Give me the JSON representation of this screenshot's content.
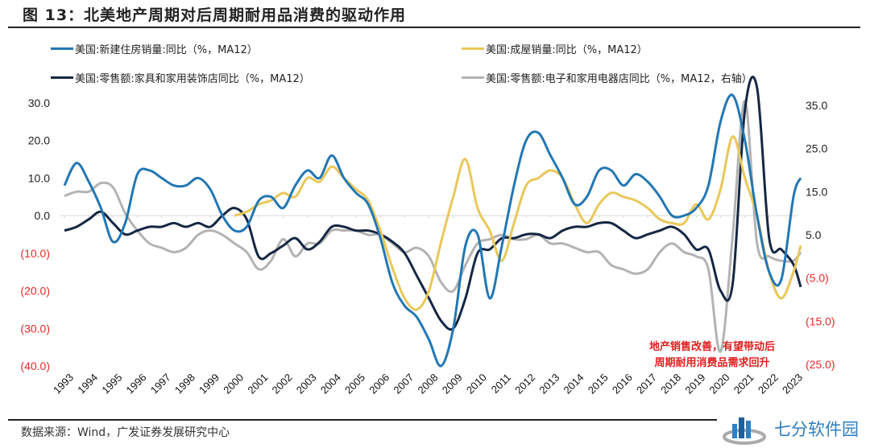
{
  "figure": {
    "title": "图 13：北美地产周期对后周期耐用品消费的驱动作用",
    "source": "数据来源：Wind，广发证券发展研究中心",
    "annotation_line1": "地产销售改善，有望带动后",
    "annotation_line2": "周期耐用消费品需求回升",
    "watermark": "七分软件园"
  },
  "chart_data": {
    "type": "line",
    "title": "图 13：北美地产周期对后周期耐用品消费的驱动作用",
    "xlabel": "",
    "ylabel": "",
    "x_ticks": [
      "1993",
      "1994",
      "1995",
      "1996",
      "1997",
      "1998",
      "1999",
      "2000",
      "2001",
      "2002",
      "2003",
      "2004",
      "2005",
      "2006",
      "2007",
      "2008",
      "2009",
      "2010",
      "2011",
      "2012",
      "2013",
      "2014",
      "2015",
      "2016",
      "2017",
      "2018",
      "2019",
      "2020",
      "2021",
      "2022",
      "2023"
    ],
    "xlim": [
      1993,
      2024
    ],
    "left_axis": {
      "ylim": [
        -40,
        30
      ],
      "ticks": [
        30,
        20,
        10,
        0,
        -10,
        -20,
        -30,
        -40
      ],
      "tick_labels": [
        "30.0",
        "20.0",
        "10.0",
        "0.0",
        "(10.0)",
        "(20.0)",
        "(30.0)",
        "(40.0)"
      ]
    },
    "right_axis": {
      "ylim": [
        -25,
        35
      ],
      "ticks": [
        35,
        25,
        15,
        5,
        -5,
        -15,
        -25
      ],
      "tick_labels": [
        "35.0",
        "25.0",
        "15.0",
        "5.0",
        "(5.0)",
        "(15.0)",
        "(25.0)"
      ]
    },
    "negative_label_color": "#e8282a",
    "positive_label_color": "#222222",
    "grid": false,
    "zero_line": true,
    "legend_position": "top",
    "series": [
      {
        "name": "美国:新建住房销量:同比（%，MA12）",
        "color": "#2277b4",
        "axis": "left",
        "x": [
          1993,
          1993.5,
          1994,
          1994.5,
          1995,
          1995.5,
          1996,
          1996.5,
          1997,
          1997.5,
          1998,
          1998.5,
          1999,
          1999.5,
          2000,
          2000.5,
          2001,
          2001.5,
          2002,
          2002.5,
          2003,
          2003.5,
          2004,
          2004.5,
          2005,
          2005.5,
          2006,
          2006.5,
          2007,
          2007.5,
          2008,
          2008.5,
          2009,
          2009.5,
          2010,
          2010.5,
          2011,
          2011.5,
          2012,
          2012.5,
          2013,
          2013.5,
          2014,
          2014.5,
          2015,
          2015.5,
          2016,
          2016.5,
          2017,
          2017.5,
          2018,
          2018.5,
          2019,
          2019.5,
          2020,
          2020.5,
          2021,
          2021.5,
          2022,
          2022.5,
          2023,
          2023.3
        ],
        "values": [
          8,
          14,
          9,
          2,
          -7,
          -2,
          11,
          12,
          10,
          8,
          8,
          10,
          7,
          0,
          -4,
          -3,
          4,
          5,
          2,
          8,
          12,
          10,
          16,
          10,
          6,
          3,
          -6,
          -18,
          -24,
          -27,
          -33,
          -40,
          -30,
          -8,
          -5,
          -22,
          -8,
          8,
          20,
          22,
          16,
          10,
          3,
          5,
          12,
          12,
          8,
          11,
          9,
          5,
          0,
          0,
          2,
          8,
          25,
          32,
          20,
          0,
          -15,
          -17,
          5,
          10
        ]
      },
      {
        "name": "美国:成屋销量:同比（%，MA12）",
        "color": "#e9c75a",
        "axis": "left",
        "x": [
          2000,
          2000.5,
          2001,
          2001.5,
          2002,
          2002.5,
          2003,
          2003.5,
          2004,
          2004.5,
          2005,
          2005.5,
          2006,
          2006.5,
          2007,
          2007.5,
          2008,
          2008.5,
          2009,
          2009.5,
          2010,
          2010.5,
          2011,
          2011.5,
          2012,
          2012.5,
          2013,
          2013.5,
          2014,
          2014.5,
          2015,
          2015.5,
          2016,
          2016.5,
          2017,
          2017.5,
          2018,
          2018.5,
          2019,
          2019.5,
          2020,
          2020.5,
          2021,
          2021.5,
          2022,
          2022.5,
          2023,
          2023.3
        ],
        "values": [
          0,
          1,
          3,
          4,
          6,
          5,
          10,
          9,
          13,
          10,
          7,
          4,
          -4,
          -14,
          -22,
          -25,
          -20,
          -7,
          5,
          15,
          2,
          -4,
          -12,
          -2,
          8,
          10,
          12,
          10,
          3,
          -2,
          3,
          6,
          5,
          4,
          2,
          -1,
          -2,
          -2,
          3,
          -1,
          7,
          21,
          10,
          0,
          -15,
          -22,
          -15,
          -8
        ]
      },
      {
        "name": "美国:零售额:家具和家用装饰店同比（%，MA12）",
        "color": "#152742",
        "axis": "left",
        "x": [
          1993,
          1993.5,
          1994,
          1994.5,
          1995,
          1995.5,
          1996,
          1996.5,
          1997,
          1997.5,
          1998,
          1998.5,
          1999,
          1999.5,
          2000,
          2000.5,
          2001,
          2001.5,
          2002,
          2002.5,
          2003,
          2003.5,
          2004,
          2004.5,
          2005,
          2005.5,
          2006,
          2006.5,
          2007,
          2007.5,
          2008,
          2008.5,
          2009,
          2009.5,
          2010,
          2010.5,
          2011,
          2011.5,
          2012,
          2012.5,
          2013,
          2013.5,
          2014,
          2014.5,
          2015,
          2015.5,
          2016,
          2016.5,
          2017,
          2017.5,
          2018,
          2018.5,
          2019,
          2019.5,
          2020,
          2020.5,
          2021,
          2021.5,
          2022,
          2022.5,
          2023,
          2023.3
        ],
        "values": [
          -4,
          -3,
          -1,
          1,
          -2,
          -5,
          -4,
          -3,
          -3,
          -2,
          -3,
          -2,
          -3,
          0,
          2,
          -1,
          -11,
          -10,
          -8,
          -6,
          -9,
          -7,
          -3,
          -3,
          -4,
          -4,
          -5,
          -7,
          -10,
          -16,
          -22,
          -28,
          -30,
          -22,
          -10,
          -9,
          -6,
          -6,
          -5,
          -5,
          -6,
          -4,
          -3,
          -3,
          -2,
          -2,
          -4,
          -6,
          -5,
          -4,
          -3,
          -5,
          -9,
          -9,
          -20,
          -18,
          28,
          34,
          -6,
          -9,
          -13,
          -19
        ]
      },
      {
        "name": "美国:零售额:电子和家用电器店同比（%，MA12，右轴）",
        "color": "#b3b3b3",
        "axis": "right",
        "x": [
          1993,
          1993.5,
          1994,
          1994.5,
          1995,
          1995.5,
          1996,
          1996.5,
          1997,
          1997.5,
          1998,
          1998.5,
          1999,
          1999.5,
          2000,
          2000.5,
          2001,
          2001.5,
          2002,
          2002.5,
          2003,
          2003.5,
          2004,
          2004.5,
          2005,
          2005.5,
          2006,
          2006.5,
          2007,
          2007.5,
          2008,
          2008.5,
          2009,
          2009.5,
          2010,
          2010.5,
          2011,
          2011.5,
          2012,
          2012.5,
          2013,
          2013.5,
          2014,
          2014.5,
          2015,
          2015.5,
          2016,
          2016.5,
          2017,
          2017.5,
          2018,
          2018.5,
          2019,
          2019.5,
          2020,
          2020.5,
          2021,
          2021.5,
          2022,
          2022.5,
          2023,
          2023.3
        ],
        "values": [
          14,
          15,
          15,
          17,
          16,
          10,
          6,
          3,
          2,
          1,
          2,
          5,
          6,
          5,
          3,
          1,
          -3,
          -1,
          4,
          0,
          3,
          3,
          6,
          6,
          6,
          5,
          5,
          3,
          1,
          2,
          0,
          -6,
          -8,
          -2,
          3,
          4,
          5,
          4,
          4,
          5,
          3,
          3,
          2,
          1,
          1,
          -2,
          -3,
          -4,
          -3,
          1,
          3,
          1,
          0,
          -3,
          -22,
          5,
          36,
          3,
          0,
          -1,
          -1,
          1
        ]
      }
    ]
  }
}
